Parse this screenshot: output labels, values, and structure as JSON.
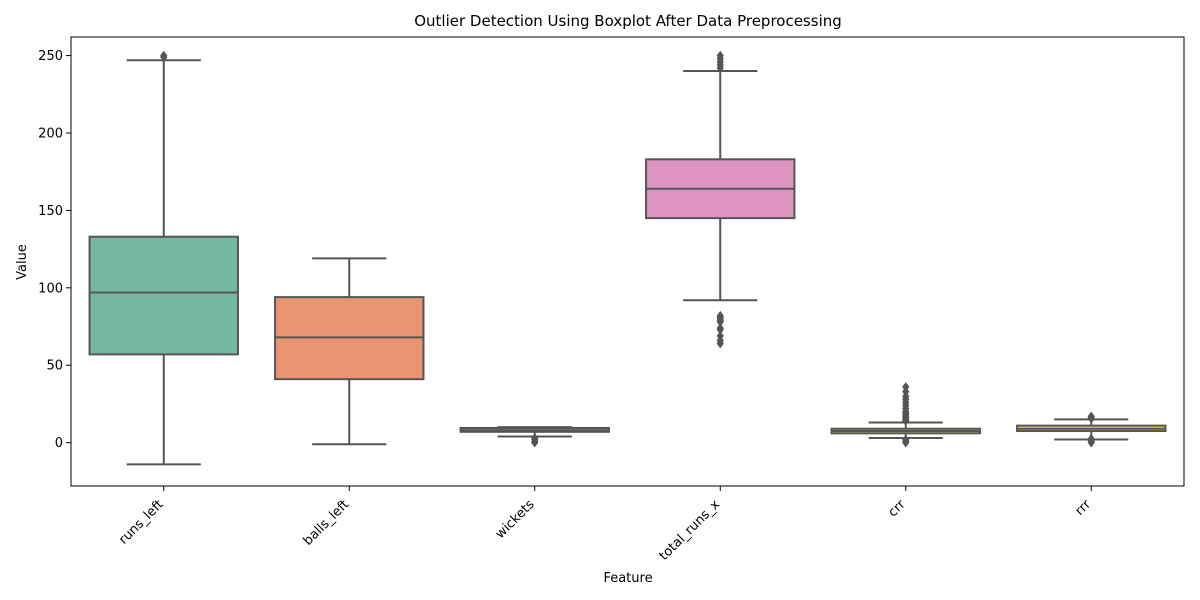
{
  "chart_data": {
    "type": "boxplot",
    "title": "Outlier Detection Using Boxplot After Data Preprocessing",
    "xlabel": "Feature",
    "ylabel": "Value",
    "ylim": [
      -28,
      262
    ],
    "yticks": [
      0,
      50,
      100,
      150,
      200,
      250
    ],
    "categories": [
      "runs_left",
      "balls_left",
      "wickets",
      "total_runs_x",
      "crr",
      "rrr"
    ],
    "boxes": [
      {
        "category": "runs_left",
        "q1": 57,
        "median": 97,
        "q3": 133,
        "whisker_low": -14,
        "whisker_high": 247,
        "outliers": [
          249,
          250
        ],
        "color": "#75b7a1"
      },
      {
        "category": "balls_left",
        "q1": 41,
        "median": 68,
        "q3": 94,
        "whisker_low": -1,
        "whisker_high": 119,
        "outliers": [],
        "color": "#e89672"
      },
      {
        "category": "wickets",
        "q1": 7,
        "median": 8,
        "q3": 9.5,
        "whisker_low": 4,
        "whisker_high": 10,
        "outliers": [
          0,
          1,
          2,
          3
        ],
        "color": "#8fa1cb"
      },
      {
        "category": "total_runs_x",
        "q1": 145,
        "median": 164,
        "q3": 183,
        "whisker_low": 92,
        "whisker_high": 240,
        "outliers": [
          64,
          66,
          69,
          73,
          74,
          78,
          79,
          80,
          81,
          82,
          242,
          244,
          246,
          248,
          250
        ],
        "color": "#dd94c1"
      },
      {
        "category": "crr",
        "q1": 6,
        "median": 7.5,
        "q3": 9,
        "whisker_low": 3,
        "whisker_high": 13,
        "outliers": [
          0,
          1,
          2,
          14,
          15,
          16,
          17,
          18,
          19,
          20,
          22,
          24,
          26,
          28,
          30,
          33,
          36
        ],
        "color": "#a4d05f"
      },
      {
        "category": "rrr",
        "q1": 7.5,
        "median": 9,
        "q3": 11,
        "whisker_low": 2,
        "whisker_high": 15,
        "outliers": [
          0,
          1,
          2.5,
          15.5,
          16.5,
          17
        ],
        "color": "#ffd92f"
      }
    ],
    "line_color": "#555555",
    "grid": false,
    "legend": "none"
  }
}
